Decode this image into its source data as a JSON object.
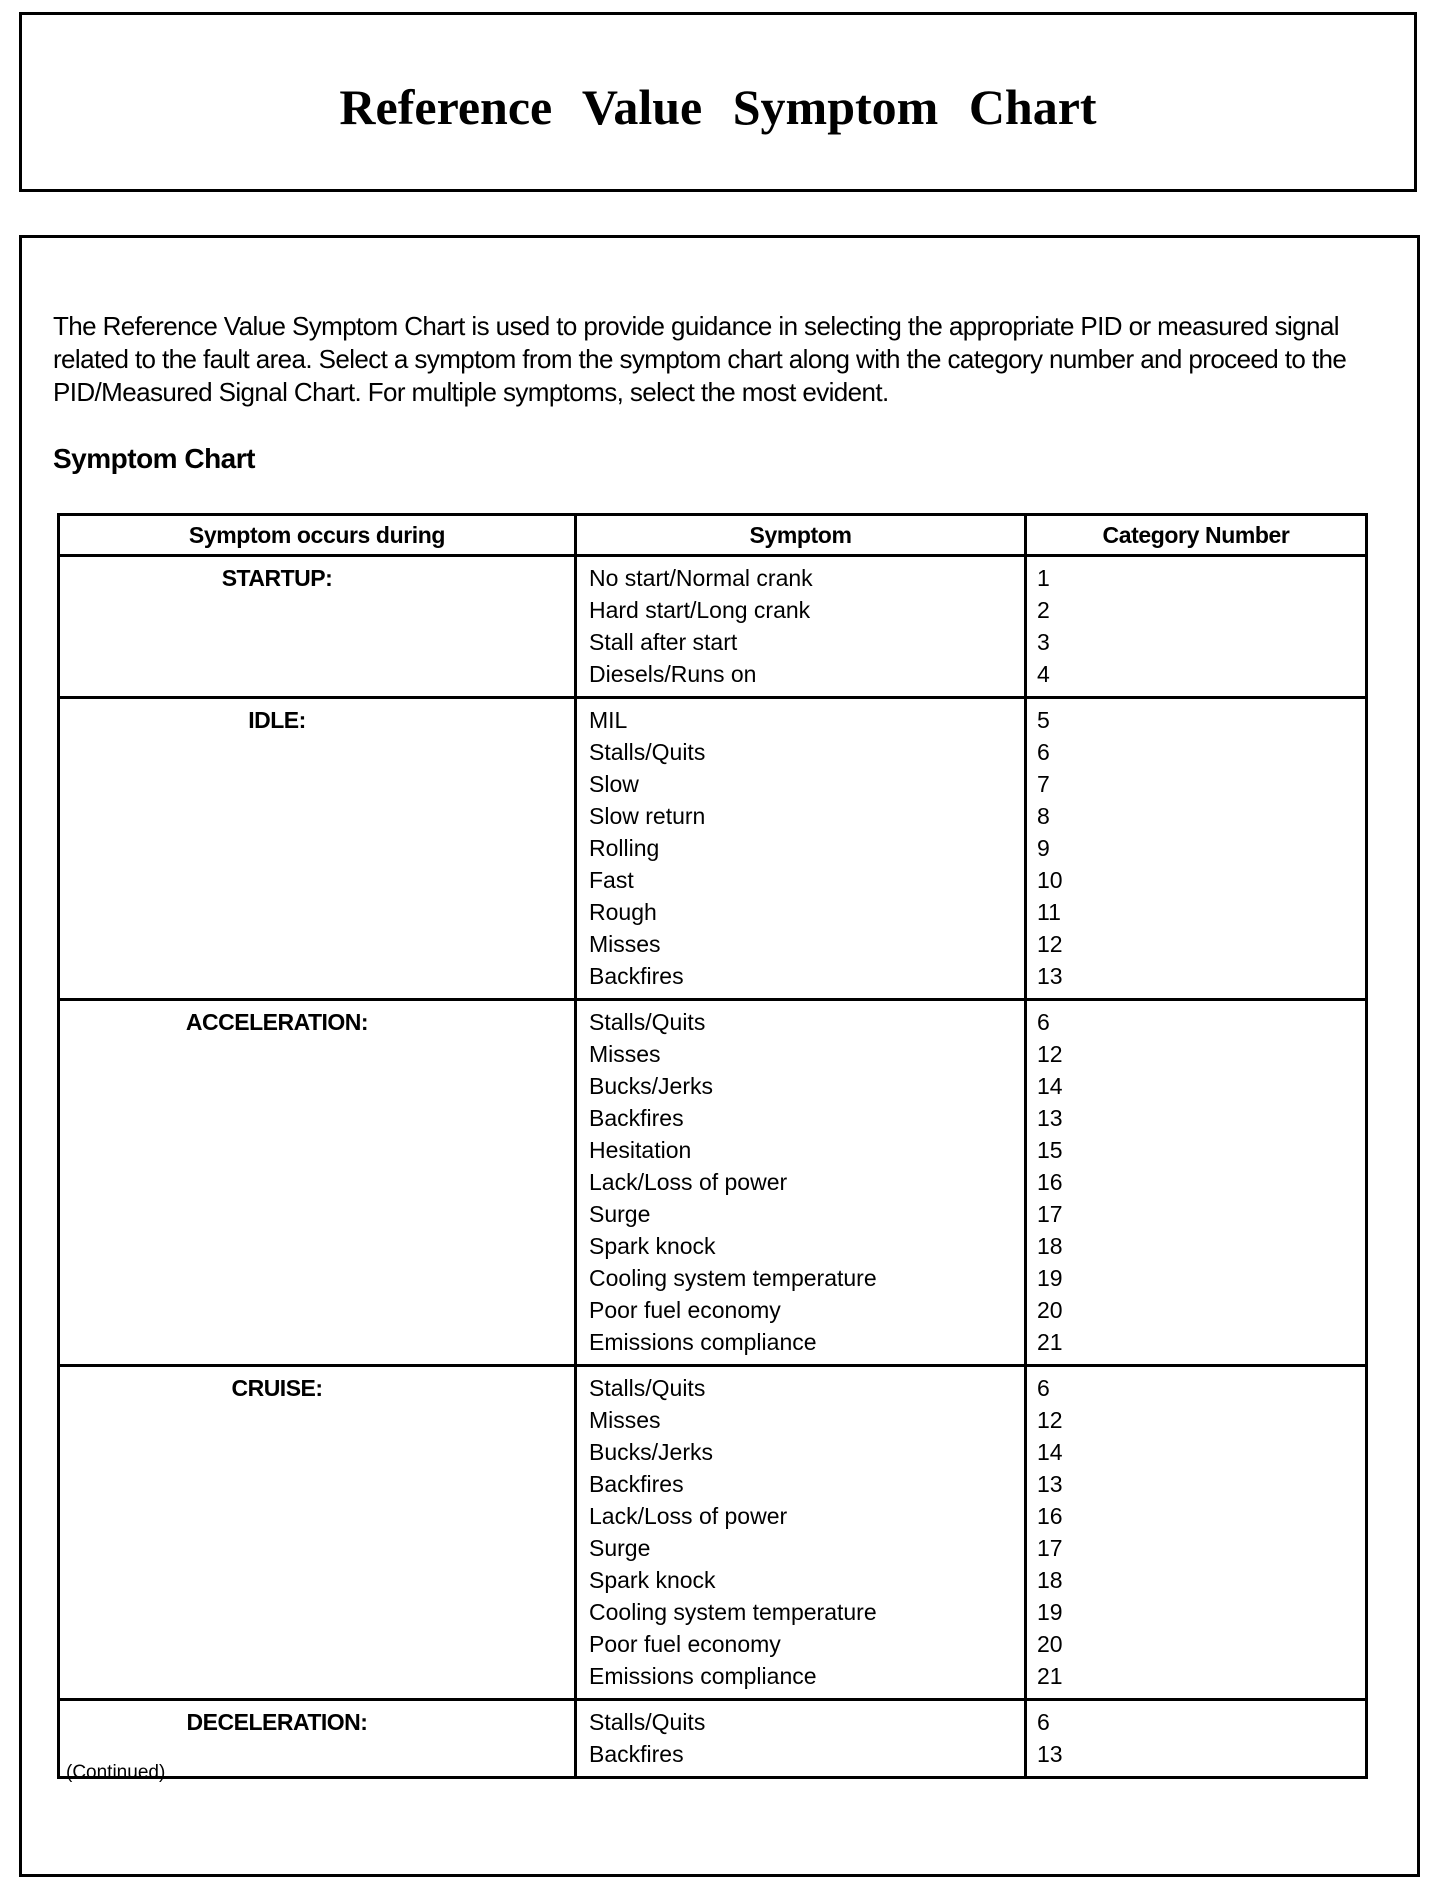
{
  "title": "Reference Value Symptom Chart",
  "intro": "The Reference Value Symptom Chart is used to provide guidance in selecting the appropriate PID or measured signal related to the fault area. Select a symptom from the symptom chart along with the category number and proceed to the PID/Measured Signal Chart. For multiple symptoms, select the most evident.",
  "heading": "Symptom Chart",
  "columns": [
    "Symptom occurs during",
    "Symptom",
    "Category Number"
  ],
  "groups": [
    {
      "phase": "STARTUP:",
      "rows": [
        [
          "No start/Normal crank",
          "1"
        ],
        [
          "Hard start/Long crank",
          "2"
        ],
        [
          "Stall after start",
          "3"
        ],
        [
          "Diesels/Runs on",
          "4"
        ]
      ]
    },
    {
      "phase": "IDLE:",
      "rows": [
        [
          "MIL",
          "5"
        ],
        [
          "Stalls/Quits",
          "6"
        ],
        [
          "Slow",
          "7"
        ],
        [
          "Slow return",
          "8"
        ],
        [
          "Rolling",
          "9"
        ],
        [
          "Fast",
          "10"
        ],
        [
          "Rough",
          "11"
        ],
        [
          "Misses",
          "12"
        ],
        [
          "Backfires",
          "13"
        ]
      ]
    },
    {
      "phase": "ACCELERATION:",
      "rows": [
        [
          "Stalls/Quits",
          "6"
        ],
        [
          "Misses",
          "12"
        ],
        [
          "Bucks/Jerks",
          "14"
        ],
        [
          "Backfires",
          "13"
        ],
        [
          "Hesitation",
          "15"
        ],
        [
          "Lack/Loss of power",
          "16"
        ],
        [
          "Surge",
          "17"
        ],
        [
          "Spark knock",
          "18"
        ],
        [
          "Cooling system temperature",
          "19"
        ],
        [
          "Poor fuel economy",
          "20"
        ],
        [
          "Emissions compliance",
          "21"
        ]
      ]
    },
    {
      "phase": "CRUISE:",
      "rows": [
        [
          "Stalls/Quits",
          "6"
        ],
        [
          "Misses",
          "12"
        ],
        [
          "Bucks/Jerks",
          "14"
        ],
        [
          "Backfires",
          "13"
        ],
        [
          "Lack/Loss of power",
          "16"
        ],
        [
          "Surge",
          "17"
        ],
        [
          "Spark knock",
          "18"
        ],
        [
          "Cooling system temperature",
          "19"
        ],
        [
          "Poor fuel economy",
          "20"
        ],
        [
          "Emissions compliance",
          "21"
        ]
      ]
    },
    {
      "phase": "DECELERATION:",
      "rows": [
        [
          "Stalls/Quits",
          "6"
        ],
        [
          "Backfires",
          "13"
        ]
      ]
    }
  ],
  "continued": "(Continued)"
}
